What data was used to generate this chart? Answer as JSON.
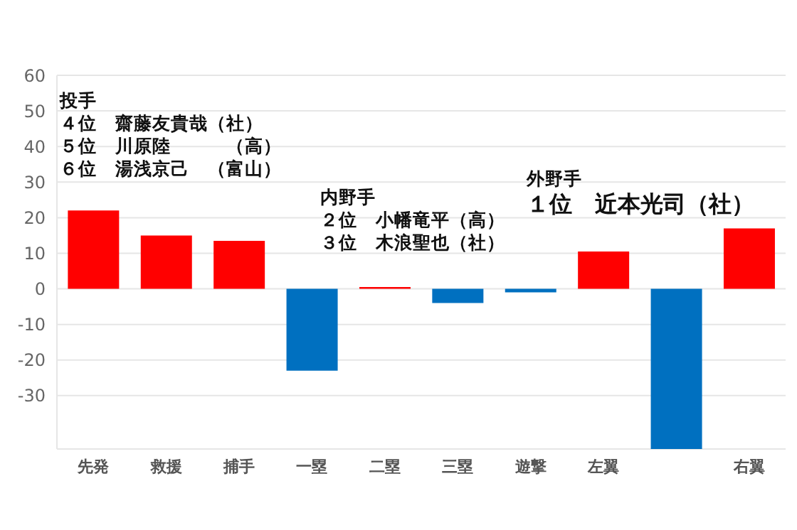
{
  "chart_data": {
    "type": "bar",
    "categories": [
      "先発",
      "救援",
      "捕手",
      "一塁",
      "二塁",
      "三塁",
      "遊撃",
      "左翼",
      null,
      "右翼"
    ],
    "values": [
      22,
      15,
      13.5,
      -23,
      0.5,
      -4,
      -1,
      10.5,
      -45,
      17
    ],
    "colors": [
      "#ff0000",
      "#ff0000",
      "#ff0000",
      "#0070c0",
      "#ff0000",
      "#0070c0",
      "#0070c0",
      "#ff0000",
      "#0070c0",
      "#ff0000"
    ],
    "ylim": [
      -45,
      60
    ],
    "yticks": [
      -30,
      -20,
      -10,
      0,
      10,
      20,
      30,
      40,
      50,
      60
    ],
    "grid": "y",
    "legend": false,
    "annotations": [
      "投手",
      "４位　齋藤友貴哉（社）",
      "５位　川原陸　　　（高）",
      "６位　湯浅京己　（富山）",
      "内野手",
      "２位　小幡竜平（高）",
      "３位　木浪聖也（社）",
      "外野手",
      "１位　近本光司（社）"
    ]
  }
}
